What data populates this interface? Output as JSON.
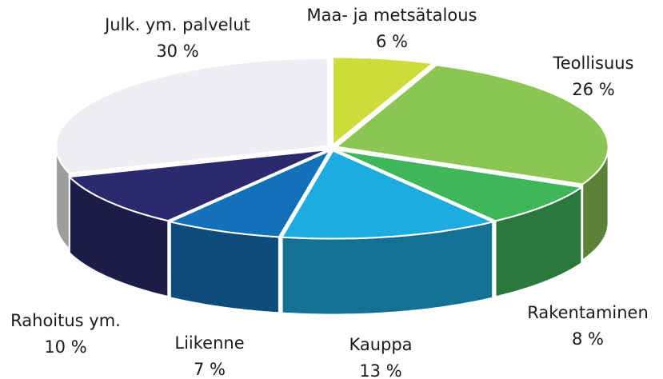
{
  "chart_data": {
    "type": "pie3d",
    "categories": [
      "Maa- ja metsätalous",
      "Teollisuus",
      "Rakentaminen",
      "Kauppa",
      "Liikenne",
      "Rahoitus ym.",
      "Julk. ym. palvelut"
    ],
    "values": [
      6,
      26,
      8,
      13,
      7,
      10,
      30
    ],
    "value_labels": [
      "6 %",
      "26 %",
      "8 %",
      "13 %",
      "7 %",
      "10 %",
      "30 %"
    ],
    "colors": [
      "#cddc3a",
      "#8bc553",
      "#3fb65a",
      "#1eabe0",
      "#1371b9",
      "#2c2a6d",
      "#eeeef2"
    ]
  }
}
